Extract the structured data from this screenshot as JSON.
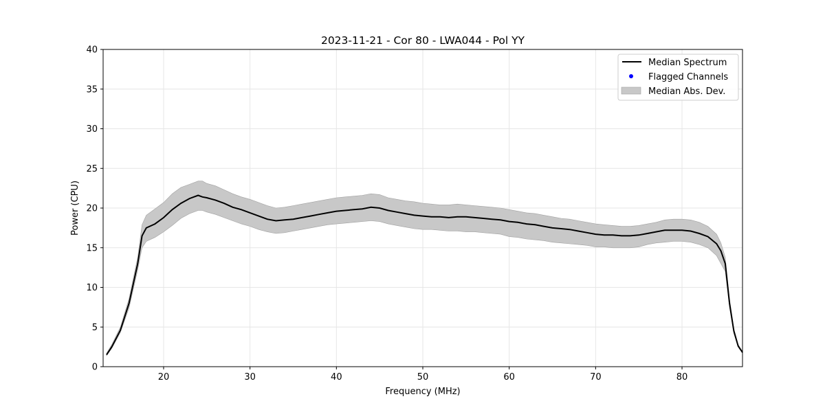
{
  "chart_data": {
    "type": "line",
    "title": "2023-11-21 - Cor 80 - LWA044 - Pol YY",
    "xlabel": "Frequency (MHz)",
    "ylabel": "Power (CPU)",
    "xlim": [
      13,
      87
    ],
    "ylim": [
      0,
      40
    ],
    "xticks": [
      20,
      30,
      40,
      50,
      60,
      70,
      80
    ],
    "yticks": [
      0,
      5,
      10,
      15,
      20,
      25,
      30,
      35,
      40
    ],
    "grid": true,
    "legend_position": "top-right",
    "legend": [
      {
        "label": "Median Spectrum",
        "kind": "line",
        "color": "#000000"
      },
      {
        "label": "Flagged Channels",
        "kind": "point",
        "color": "#0000ff"
      },
      {
        "label": "Median Abs. Dev.",
        "kind": "band",
        "color": "#c8c8c8"
      }
    ],
    "series": [
      {
        "name": "Median Spectrum",
        "x": [
          13.4,
          14,
          15,
          16,
          17,
          17.5,
          18,
          19,
          20,
          21,
          22,
          23,
          24,
          24.5,
          25,
          26,
          27,
          28,
          29,
          30,
          31,
          32,
          33,
          34,
          35,
          36,
          37,
          38,
          39,
          40,
          41,
          42,
          43,
          44,
          45,
          46,
          47,
          48,
          49,
          50,
          51,
          52,
          53,
          54,
          55,
          56,
          57,
          58,
          59,
          60,
          61,
          62,
          63,
          64,
          65,
          66,
          67,
          68,
          69,
          70,
          71,
          72,
          73,
          74,
          75,
          76,
          77,
          78,
          79,
          80,
          81,
          82,
          83,
          84,
          84.5,
          85,
          85.5,
          86,
          86.5,
          87
        ],
        "values": [
          1.5,
          2.5,
          4.6,
          8,
          13,
          16.5,
          17.5,
          18,
          18.8,
          19.8,
          20.6,
          21.2,
          21.6,
          21.4,
          21.3,
          21,
          20.6,
          20.1,
          19.8,
          19.4,
          19,
          18.6,
          18.4,
          18.5,
          18.6,
          18.8,
          19,
          19.2,
          19.4,
          19.6,
          19.7,
          19.8,
          19.9,
          20.1,
          20,
          19.7,
          19.5,
          19.3,
          19.1,
          19,
          18.9,
          18.9,
          18.8,
          18.9,
          18.9,
          18.8,
          18.7,
          18.6,
          18.5,
          18.3,
          18.2,
          18,
          17.9,
          17.7,
          17.5,
          17.4,
          17.3,
          17.1,
          16.9,
          16.7,
          16.6,
          16.6,
          16.5,
          16.5,
          16.6,
          16.8,
          17,
          17.2,
          17.2,
          17.2,
          17.1,
          16.8,
          16.4,
          15.5,
          14.6,
          13,
          8,
          4.5,
          2.6,
          1.8
        ]
      },
      {
        "name": "Median Abs. Dev.",
        "x": [
          13.4,
          14,
          15,
          16,
          17,
          17.5,
          18,
          19,
          20,
          21,
          22,
          23,
          24,
          24.5,
          25,
          26,
          27,
          28,
          29,
          30,
          31,
          32,
          33,
          34,
          35,
          36,
          37,
          38,
          39,
          40,
          41,
          42,
          43,
          44,
          45,
          46,
          47,
          48,
          49,
          50,
          51,
          52,
          53,
          54,
          55,
          56,
          57,
          58,
          59,
          60,
          61,
          62,
          63,
          64,
          65,
          66,
          67,
          68,
          69,
          70,
          71,
          72,
          73,
          74,
          75,
          76,
          77,
          78,
          79,
          80,
          81,
          82,
          83,
          84,
          84.5,
          85,
          85.5,
          86,
          86.5,
          87
        ],
        "lower": [
          1.4,
          2.3,
          4.3,
          7.4,
          12.2,
          15,
          15.8,
          16.3,
          17,
          17.8,
          18.7,
          19.3,
          19.7,
          19.7,
          19.5,
          19.2,
          18.8,
          18.4,
          18,
          17.7,
          17.3,
          17,
          16.8,
          16.9,
          17.1,
          17.3,
          17.5,
          17.7,
          17.9,
          18,
          18.1,
          18.2,
          18.3,
          18.4,
          18.3,
          18,
          17.8,
          17.6,
          17.4,
          17.3,
          17.3,
          17.2,
          17.1,
          17.1,
          17,
          17,
          16.9,
          16.8,
          16.7,
          16.4,
          16.3,
          16.1,
          16,
          15.9,
          15.7,
          15.6,
          15.5,
          15.4,
          15.3,
          15.1,
          15.1,
          15,
          15,
          15,
          15.1,
          15.4,
          15.6,
          15.7,
          15.8,
          15.8,
          15.7,
          15.4,
          15,
          14,
          13,
          12,
          7.5,
          4.2,
          2.5,
          1.7
        ],
        "upper": [
          1.7,
          2.8,
          5,
          8.6,
          13.8,
          17.9,
          19.1,
          19.9,
          20.7,
          21.8,
          22.6,
          23,
          23.4,
          23.4,
          23.1,
          22.8,
          22.3,
          21.8,
          21.4,
          21.1,
          20.7,
          20.3,
          20,
          20.1,
          20.3,
          20.5,
          20.7,
          20.9,
          21.1,
          21.3,
          21.4,
          21.5,
          21.6,
          21.8,
          21.7,
          21.3,
          21.1,
          20.9,
          20.8,
          20.6,
          20.5,
          20.4,
          20.4,
          20.5,
          20.4,
          20.3,
          20.2,
          20.1,
          20,
          19.8,
          19.6,
          19.4,
          19.3,
          19.1,
          18.9,
          18.7,
          18.6,
          18.4,
          18.2,
          18,
          17.9,
          17.8,
          17.7,
          17.7,
          17.8,
          18,
          18.2,
          18.5,
          18.6,
          18.6,
          18.5,
          18.2,
          17.7,
          16.7,
          15.6,
          13.8,
          8.6,
          4.8,
          2.8,
          1.9
        ]
      },
      {
        "name": "Flagged Channels",
        "x": [],
        "values": []
      }
    ]
  }
}
